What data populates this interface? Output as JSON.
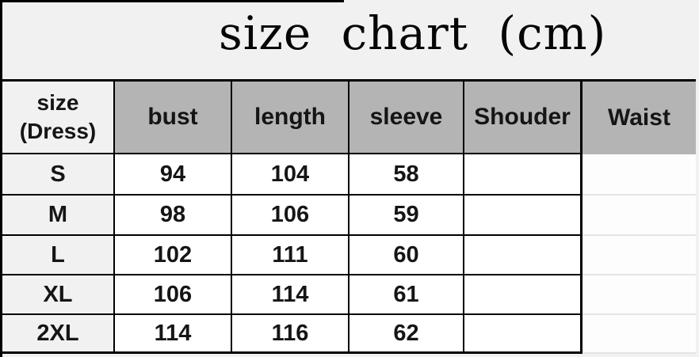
{
  "title": "size chart (cm)",
  "table": {
    "headers": [
      "size\n(Dress)",
      "bust",
      "length",
      "sleeve",
      "Shouder",
      "Waist"
    ]
  },
  "chart_data": {
    "type": "table",
    "title": "size chart (cm)",
    "unit": "cm",
    "columns": [
      "size (Dress)",
      "bust",
      "length",
      "sleeve",
      "Shouder",
      "Waist"
    ],
    "rows": [
      [
        "S",
        "94",
        "104",
        "58",
        "",
        ""
      ],
      [
        "M",
        "98",
        "106",
        "59",
        "",
        ""
      ],
      [
        "L",
        "102",
        "111",
        "60",
        "",
        ""
      ],
      [
        "XL",
        "106",
        "114",
        "61",
        "",
        ""
      ],
      [
        "2XL",
        "114",
        "116",
        "62",
        "",
        ""
      ]
    ]
  },
  "colors": {
    "page_bg": "#f1f1f1",
    "header_bg": "#b4b4b4",
    "cell_bg": "#ffffff",
    "border": "#000000",
    "faint_line": "#e5e5e5",
    "text": "#151515"
  }
}
